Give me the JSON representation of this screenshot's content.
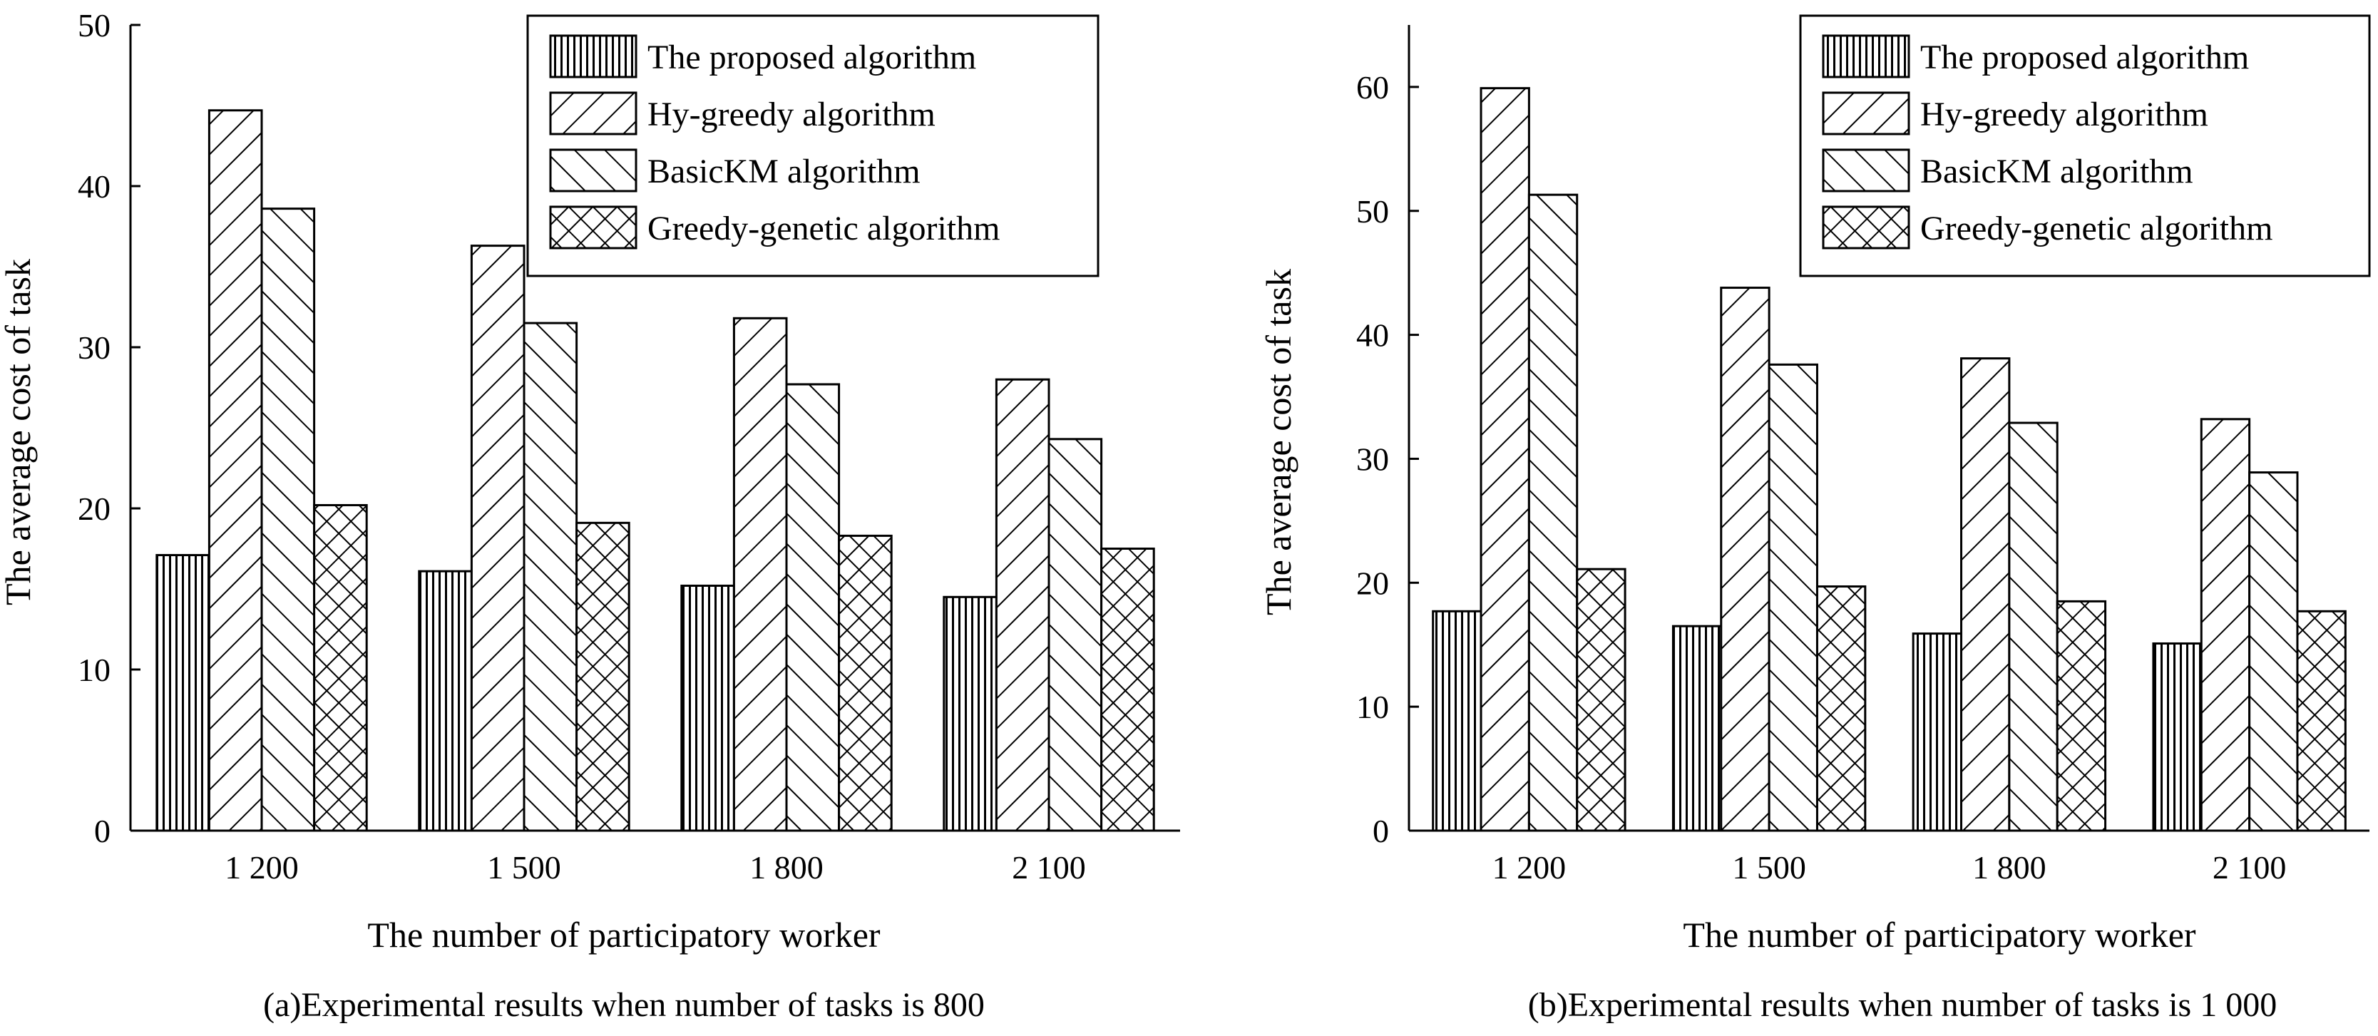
{
  "chart_data": [
    {
      "type": "bar",
      "caption": "(a)Experimental results when number of tasks is 800",
      "xlabel": "The number of participatory worker",
      "ylabel": "The average cost of task",
      "categories": [
        "1 200",
        "1 500",
        "1 800",
        "2 100"
      ],
      "ylim": [
        0,
        50
      ],
      "yticks": [
        0,
        10,
        20,
        30,
        40,
        50
      ],
      "grid": false,
      "legend_position": "top-right",
      "series": [
        {
          "name": "The proposed algorithm",
          "pattern": "vertical-lines",
          "values": [
            17.1,
            16.1,
            15.2,
            14.5
          ]
        },
        {
          "name": "Hy-greedy algorithm",
          "pattern": "forward-diagonal",
          "values": [
            44.7,
            36.3,
            31.8,
            28.0
          ]
        },
        {
          "name": "BasicKM  algorithm",
          "pattern": "backward-diagonal",
          "values": [
            38.6,
            31.5,
            27.7,
            24.3
          ]
        },
        {
          "name": "Greedy-genetic algorithm",
          "pattern": "crosshatch",
          "values": [
            20.2,
            19.1,
            18.3,
            17.5
          ]
        }
      ]
    },
    {
      "type": "bar",
      "caption": "(b)Experimental results when number of tasks is 1 000",
      "xlabel": "The number of participatory worker",
      "ylabel": "The average cost of task",
      "categories": [
        "1 200",
        "1 500",
        "1 800",
        "2 100"
      ],
      "ylim": [
        0,
        65
      ],
      "yticks": [
        0,
        10,
        20,
        30,
        40,
        50,
        60
      ],
      "grid": false,
      "legend_position": "top-right",
      "series": [
        {
          "name": "The proposed algorithm",
          "pattern": "vertical-lines",
          "values": [
            17.7,
            16.5,
            15.9,
            15.1
          ]
        },
        {
          "name": "Hy-greedy algorithm",
          "pattern": "forward-diagonal",
          "values": [
            59.9,
            43.8,
            38.1,
            33.2
          ]
        },
        {
          "name": "BasicKM  algorithm",
          "pattern": "backward-diagonal",
          "values": [
            51.3,
            37.6,
            32.9,
            28.9
          ]
        },
        {
          "name": "Greedy-genetic algorithm",
          "pattern": "crosshatch",
          "values": [
            21.1,
            19.7,
            18.5,
            17.7
          ]
        }
      ]
    }
  ]
}
